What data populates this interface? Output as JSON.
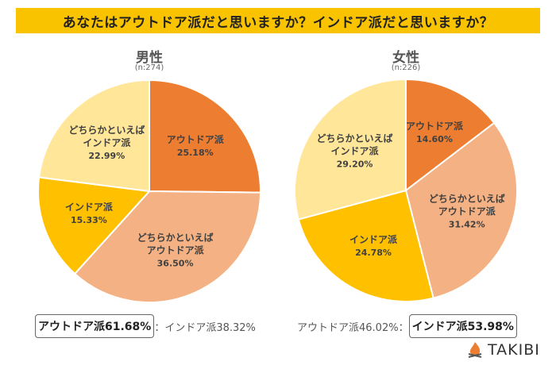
{
  "title": "あなたはアウトドア派だと思いますか？インドア派だと思いますか？",
  "chart_data": [
    {
      "type": "pie",
      "title": "男性",
      "subtitle": "(n:274)",
      "slices": [
        {
          "label": [
            "アウトドア派"
          ],
          "value": 25.18,
          "display": "25.18%",
          "color": "#ED7D31"
        },
        {
          "label": [
            "どちらかといえば",
            "アウトドア派"
          ],
          "value": 36.5,
          "display": "36.50%",
          "color": "#F4B183"
        },
        {
          "label": [
            "インドア派"
          ],
          "value": 15.33,
          "display": "15.33%",
          "color": "#FFC000"
        },
        {
          "label": [
            "どちらかといえば",
            "インドア派"
          ],
          "value": 22.99,
          "display": "22.99%",
          "color": "#FFE699"
        }
      ]
    },
    {
      "type": "pie",
      "title": "女性",
      "subtitle": "(n:226)",
      "slices": [
        {
          "label": [
            "アウトドア派"
          ],
          "value": 14.6,
          "display": "14.60%",
          "color": "#ED7D31"
        },
        {
          "label": [
            "どちらかといえば",
            "アウトドア派"
          ],
          "value": 31.42,
          "display": "31.42%",
          "color": "#F4B183"
        },
        {
          "label": [
            "インドア派"
          ],
          "value": 24.78,
          "display": "24.78%",
          "color": "#FFC000"
        },
        {
          "label": [
            "どちらかといえば",
            "インドア派"
          ],
          "value": 29.2,
          "display": "29.20%",
          "color": "#FFE699"
        }
      ]
    }
  ],
  "summary": {
    "male": {
      "outdoor": "アウトドア派61.68%",
      "sep": "：",
      "indoor": "インドア派38.32%"
    },
    "female": {
      "outdoor": "アウトドア派46.02%",
      "sep": "：",
      "indoor": "インドア派53.98%"
    }
  },
  "logo": "TAKIBI"
}
